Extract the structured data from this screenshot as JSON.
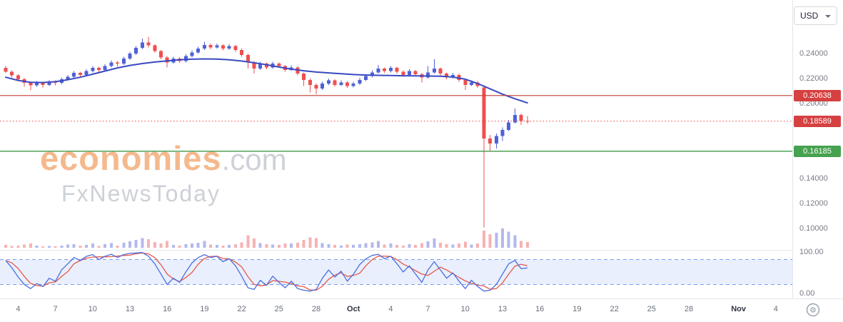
{
  "header": {
    "currency_value": "USD"
  },
  "watermark": {
    "brand": "economies",
    "suffix": ".com",
    "subbrand": "FxNewsToday"
  },
  "colors": {
    "up": "#4f61d8",
    "down": "#ef4f4f",
    "volume_up": "rgba(84,100,214,0.45)",
    "volume_down": "rgba(238,84,84,0.45)",
    "ma": "#3a49c2",
    "resistance": "#c23a30",
    "last_price": "#ef5350",
    "support": "#3d9a46",
    "badge_red": "#d64040",
    "badge_green": "#46a24f",
    "stoch_k": "#4a6fe0",
    "stoch_d": "#e8584a",
    "band_fill": "rgba(76,125,236,0.12)",
    "band_line": "#7ba0ef",
    "separator": "#e3e6ec"
  },
  "price_axis": {
    "labels": [
      {
        "text": "0.24000",
        "price": 0.24
      },
      {
        "text": "0.22000",
        "price": 0.22
      },
      {
        "text": "0.20000",
        "price": 0.2
      },
      {
        "text": "0.14000",
        "price": 0.14
      },
      {
        "text": "0.12000",
        "price": 0.12
      },
      {
        "text": "0.10000",
        "price": 0.1
      }
    ],
    "badges": [
      {
        "text": "0.20638",
        "price": 0.20638,
        "type": "resistance"
      },
      {
        "text": "0.18589",
        "price": 0.18589,
        "type": "last"
      },
      {
        "text": "0.16185",
        "price": 0.16185,
        "type": "support"
      }
    ]
  },
  "indicator_axis": {
    "labels": [
      {
        "text": "100.00",
        "value": 100
      },
      {
        "text": "0.00",
        "value": 0
      }
    ]
  },
  "time_axis": {
    "labels": [
      {
        "text": "4",
        "day": 1
      },
      {
        "text": "7",
        "day": 4
      },
      {
        "text": "10",
        "day": 7
      },
      {
        "text": "13",
        "day": 10
      },
      {
        "text": "16",
        "day": 13
      },
      {
        "text": "19",
        "day": 16
      },
      {
        "text": "22",
        "day": 19
      },
      {
        "text": "25",
        "day": 22
      },
      {
        "text": "28",
        "day": 25
      },
      {
        "text": "Oct",
        "day": 28,
        "month": true
      },
      {
        "text": "4",
        "day": 31
      },
      {
        "text": "7",
        "day": 34
      },
      {
        "text": "10",
        "day": 37
      },
      {
        "text": "13",
        "day": 40
      },
      {
        "text": "16",
        "day": 43
      },
      {
        "text": "19",
        "day": 46
      },
      {
        "text": "22",
        "day": 49
      },
      {
        "text": "25",
        "day": 52
      },
      {
        "text": "28",
        "day": 55
      },
      {
        "text": "Nov",
        "day": 59,
        "month": true
      },
      {
        "text": "4",
        "day": 62
      }
    ]
  },
  "chart_data": {
    "type": "candlestick",
    "currency": "USD",
    "price_ylim": [
      0.084,
      0.279
    ],
    "levels": {
      "resistance": 0.20638,
      "last_price": 0.18589,
      "support": 0.16185
    },
    "candles_per_day": 2,
    "candles_ohlc": [
      [
        0.2285,
        0.23,
        0.2245,
        0.2255
      ],
      [
        0.2255,
        0.2265,
        0.221,
        0.2225
      ],
      [
        0.2225,
        0.2235,
        0.218,
        0.2195
      ],
      [
        0.2195,
        0.2205,
        0.2135,
        0.2165
      ],
      [
        0.2165,
        0.2175,
        0.2105,
        0.2145
      ],
      [
        0.2145,
        0.218,
        0.2135,
        0.2165
      ],
      [
        0.2165,
        0.2175,
        0.213,
        0.215
      ],
      [
        0.215,
        0.219,
        0.214,
        0.2175
      ],
      [
        0.2175,
        0.2185,
        0.2145,
        0.2165
      ],
      [
        0.2165,
        0.221,
        0.2155,
        0.2195
      ],
      [
        0.2195,
        0.223,
        0.2185,
        0.2215
      ],
      [
        0.2215,
        0.226,
        0.2205,
        0.2245
      ],
      [
        0.2245,
        0.2255,
        0.221,
        0.223
      ],
      [
        0.223,
        0.2275,
        0.222,
        0.226
      ],
      [
        0.226,
        0.23,
        0.225,
        0.2285
      ],
      [
        0.2285,
        0.2295,
        0.225,
        0.227
      ],
      [
        0.227,
        0.2315,
        0.226,
        0.23
      ],
      [
        0.23,
        0.2345,
        0.229,
        0.233
      ],
      [
        0.233,
        0.234,
        0.2295,
        0.232
      ],
      [
        0.232,
        0.2375,
        0.231,
        0.236
      ],
      [
        0.236,
        0.2415,
        0.235,
        0.24
      ],
      [
        0.24,
        0.246,
        0.239,
        0.2445
      ],
      [
        0.2445,
        0.252,
        0.2435,
        0.249
      ],
      [
        0.249,
        0.2535,
        0.245,
        0.2465
      ],
      [
        0.2465,
        0.2475,
        0.2405,
        0.242
      ],
      [
        0.242,
        0.243,
        0.2355,
        0.237
      ],
      [
        0.237,
        0.238,
        0.229,
        0.233
      ],
      [
        0.233,
        0.2375,
        0.232,
        0.236
      ],
      [
        0.236,
        0.237,
        0.2325,
        0.234
      ],
      [
        0.234,
        0.2395,
        0.233,
        0.238
      ],
      [
        0.238,
        0.2425,
        0.237,
        0.241
      ],
      [
        0.241,
        0.2455,
        0.24,
        0.244
      ],
      [
        0.244,
        0.2495,
        0.243,
        0.247
      ],
      [
        0.247,
        0.248,
        0.2435,
        0.245
      ],
      [
        0.245,
        0.248,
        0.244,
        0.2465
      ],
      [
        0.2465,
        0.2475,
        0.2425,
        0.244
      ],
      [
        0.244,
        0.2475,
        0.243,
        0.246
      ],
      [
        0.246,
        0.247,
        0.2415,
        0.243
      ],
      [
        0.243,
        0.244,
        0.2375,
        0.239
      ],
      [
        0.239,
        0.24,
        0.228,
        0.233
      ],
      [
        0.233,
        0.234,
        0.224,
        0.228
      ],
      [
        0.228,
        0.2335,
        0.227,
        0.232
      ],
      [
        0.232,
        0.233,
        0.2275,
        0.229
      ],
      [
        0.229,
        0.2335,
        0.228,
        0.232
      ],
      [
        0.232,
        0.233,
        0.2285,
        0.23
      ],
      [
        0.23,
        0.231,
        0.2255,
        0.227
      ],
      [
        0.227,
        0.2305,
        0.226,
        0.229
      ],
      [
        0.229,
        0.23,
        0.2225,
        0.224
      ],
      [
        0.224,
        0.225,
        0.214,
        0.219
      ],
      [
        0.219,
        0.22,
        0.209,
        0.215
      ],
      [
        0.215,
        0.216,
        0.2075,
        0.212
      ],
      [
        0.212,
        0.2175,
        0.211,
        0.216
      ],
      [
        0.216,
        0.22,
        0.215,
        0.2185
      ],
      [
        0.2185,
        0.2195,
        0.2135,
        0.215
      ],
      [
        0.215,
        0.2185,
        0.214,
        0.217
      ],
      [
        0.217,
        0.218,
        0.2125,
        0.214
      ],
      [
        0.214,
        0.2175,
        0.213,
        0.216
      ],
      [
        0.216,
        0.2205,
        0.215,
        0.219
      ],
      [
        0.219,
        0.2235,
        0.218,
        0.222
      ],
      [
        0.222,
        0.2265,
        0.221,
        0.225
      ],
      [
        0.225,
        0.231,
        0.224,
        0.228
      ],
      [
        0.228,
        0.229,
        0.2245,
        0.226
      ],
      [
        0.226,
        0.23,
        0.225,
        0.2285
      ],
      [
        0.2285,
        0.2295,
        0.224,
        0.2255
      ],
      [
        0.2255,
        0.2265,
        0.2215,
        0.223
      ],
      [
        0.223,
        0.2275,
        0.222,
        0.226
      ],
      [
        0.226,
        0.227,
        0.222,
        0.2235
      ],
      [
        0.2235,
        0.2245,
        0.217,
        0.221
      ],
      [
        0.221,
        0.23,
        0.22,
        0.225
      ],
      [
        0.225,
        0.2355,
        0.224,
        0.228
      ],
      [
        0.228,
        0.229,
        0.2225,
        0.224
      ],
      [
        0.224,
        0.225,
        0.2195,
        0.221
      ],
      [
        0.221,
        0.2245,
        0.22,
        0.223
      ],
      [
        0.223,
        0.224,
        0.2175,
        0.219
      ],
      [
        0.219,
        0.22,
        0.211,
        0.215
      ],
      [
        0.215,
        0.2185,
        0.214,
        0.217
      ],
      [
        0.217,
        0.218,
        0.2125,
        0.214
      ],
      [
        0.213,
        0.2145,
        0.101,
        0.172
      ],
      [
        0.172,
        0.175,
        0.162,
        0.168
      ],
      [
        0.168,
        0.176,
        0.164,
        0.174
      ],
      [
        0.174,
        0.181,
        0.17,
        0.179
      ],
      [
        0.179,
        0.187,
        0.178,
        0.185
      ],
      [
        0.185,
        0.196,
        0.184,
        0.191
      ],
      [
        0.191,
        0.192,
        0.183,
        0.186
      ],
      [
        0.186,
        0.19,
        0.184,
        0.18589
      ]
    ],
    "volume": [
      12,
      8,
      10,
      14,
      18,
      9,
      7,
      8,
      6,
      10,
      14,
      16,
      9,
      12,
      18,
      8,
      15,
      20,
      10,
      22,
      28,
      35,
      42,
      38,
      25,
      18,
      30,
      12,
      10,
      15,
      18,
      22,
      30,
      14,
      12,
      10,
      13,
      16,
      24,
      55,
      40,
      20,
      16,
      14,
      12,
      18,
      18,
      22,
      35,
      45,
      42,
      20,
      16,
      12,
      10,
      14,
      12,
      16,
      20,
      24,
      30,
      14,
      18,
      12,
      10,
      16,
      12,
      20,
      28,
      40,
      22,
      16,
      14,
      18,
      26,
      14,
      18,
      75,
      60,
      65,
      85,
      70,
      55,
      30,
      25
    ],
    "ma_line_daily": [
      0.221,
      0.2185,
      0.217,
      0.2168,
      0.2175,
      0.219,
      0.221,
      0.2235,
      0.226,
      0.2285,
      0.2305,
      0.232,
      0.2332,
      0.2342,
      0.235,
      0.2355,
      0.2357,
      0.2356,
      0.235,
      0.234,
      0.2326,
      0.231,
      0.2292,
      0.2275,
      0.2262,
      0.2252,
      0.2245,
      0.2238,
      0.2232,
      0.2228,
      0.2226,
      0.2224,
      0.2222,
      0.2221,
      0.222,
      0.2218,
      0.2212,
      0.2195,
      0.216,
      0.2118,
      0.2075,
      0.2038,
      0.2005
    ],
    "stochastic_k": [
      78,
      60,
      38,
      20,
      10,
      22,
      15,
      35,
      28,
      55,
      70,
      85,
      78,
      88,
      92,
      80,
      88,
      93,
      85,
      92,
      95,
      96,
      97,
      88,
      70,
      45,
      20,
      35,
      25,
      50,
      72,
      85,
      92,
      85,
      88,
      75,
      82,
      65,
      40,
      12,
      8,
      30,
      18,
      40,
      25,
      12,
      28,
      10,
      6,
      4,
      8,
      35,
      55,
      38,
      52,
      28,
      45,
      68,
      82,
      90,
      93,
      82,
      88,
      70,
      50,
      65,
      45,
      25,
      55,
      75,
      55,
      35,
      48,
      28,
      10,
      30,
      15,
      4,
      6,
      20,
      45,
      70,
      78,
      58,
      60
    ],
    "stochastic_range": [
      0,
      100
    ],
    "stochastic_bands": [
      20,
      80
    ]
  }
}
